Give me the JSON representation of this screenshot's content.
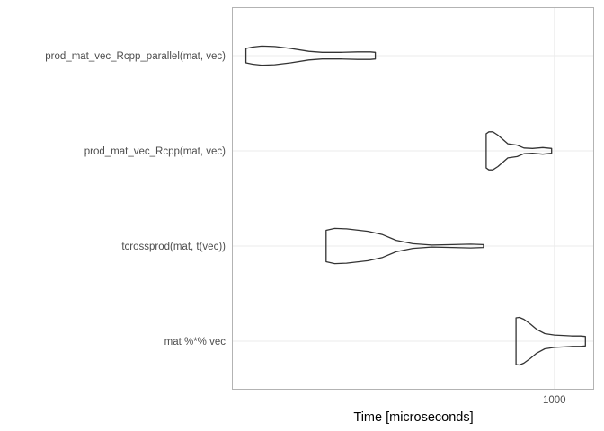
{
  "chart_data": {
    "type": "violin",
    "title": "",
    "xlabel": "Time [microseconds]",
    "ylabel": "",
    "x_scale": "log10",
    "x_tick_labels": [
      "1000"
    ],
    "x_ticks": [
      1000
    ],
    "xlim": [
      180,
      1230
    ],
    "grid": true,
    "panel_border": true,
    "colors": {
      "outline": "#333333",
      "grid": "#ebebeb",
      "border": "#b3b3b3",
      "tick_text": "#4d4d4d",
      "title_text": "#000000"
    },
    "categories": [
      "mat %*% vec",
      "tcrossprod(mat, t(vec))",
      "prod_mat_vec_Rcpp(mat, vec)",
      "prod_mat_vec_Rcpp_parallel(mat, vec)"
    ],
    "series": [
      {
        "category": "mat %*% vec",
        "min": 815,
        "max": 1180,
        "density": [
          [
            815,
            0.49
          ],
          [
            830,
            0.5
          ],
          [
            850,
            0.46
          ],
          [
            880,
            0.36
          ],
          [
            910,
            0.25
          ],
          [
            950,
            0.16
          ],
          [
            1000,
            0.13
          ],
          [
            1050,
            0.12
          ],
          [
            1100,
            0.11
          ],
          [
            1150,
            0.11
          ],
          [
            1180,
            0.1
          ]
        ]
      },
      {
        "category": "tcrossprod(mat, t(vec))",
        "min": 296,
        "max": 685,
        "density": [
          [
            296,
            0.33
          ],
          [
            310,
            0.37
          ],
          [
            330,
            0.36
          ],
          [
            370,
            0.31
          ],
          [
            400,
            0.24
          ],
          [
            430,
            0.12
          ],
          [
            470,
            0.05
          ],
          [
            520,
            0.02
          ],
          [
            580,
            0.03
          ],
          [
            640,
            0.04
          ],
          [
            685,
            0.03
          ]
        ]
      },
      {
        "category": "prod_mat_vec_Rcpp(mat, vec)",
        "min": 695,
        "max": 985,
        "density": [
          [
            695,
            0.36
          ],
          [
            700,
            0.38
          ],
          [
            705,
            0.4
          ],
          [
            720,
            0.4
          ],
          [
            740,
            0.33
          ],
          [
            780,
            0.15
          ],
          [
            820,
            0.12
          ],
          [
            850,
            0.06
          ],
          [
            890,
            0.05
          ],
          [
            940,
            0.07
          ],
          [
            985,
            0.05
          ]
        ]
      },
      {
        "category": "prod_mat_vec_Rcpp_parallel(mat, vec)",
        "min": 193,
        "max": 385,
        "density": [
          [
            193,
            0.15
          ],
          [
            200,
            0.18
          ],
          [
            210,
            0.2
          ],
          [
            225,
            0.19
          ],
          [
            245,
            0.15
          ],
          [
            270,
            0.09
          ],
          [
            290,
            0.07
          ],
          [
            320,
            0.07
          ],
          [
            350,
            0.08
          ],
          [
            375,
            0.08
          ],
          [
            385,
            0.07
          ]
        ]
      }
    ]
  }
}
